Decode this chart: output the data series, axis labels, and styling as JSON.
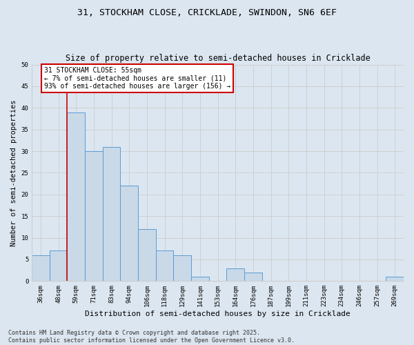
{
  "title": "31, STOCKHAM CLOSE, CRICKLADE, SWINDON, SN6 6EF",
  "subtitle": "Size of property relative to semi-detached houses in Cricklade",
  "xlabel": "Distribution of semi-detached houses by size in Cricklade",
  "ylabel": "Number of semi-detached properties",
  "bin_labels": [
    "36sqm",
    "48sqm",
    "59sqm",
    "71sqm",
    "83sqm",
    "94sqm",
    "106sqm",
    "118sqm",
    "129sqm",
    "141sqm",
    "153sqm",
    "164sqm",
    "176sqm",
    "187sqm",
    "199sqm",
    "211sqm",
    "223sqm",
    "234sqm",
    "246sqm",
    "257sqm",
    "269sqm"
  ],
  "values": [
    6,
    7,
    39,
    30,
    31,
    22,
    12,
    7,
    6,
    1,
    0,
    3,
    2,
    0,
    0,
    0,
    0,
    0,
    0,
    0,
    1
  ],
  "bar_color": "#c9d9e8",
  "bar_edge_color": "#5b9bd5",
  "vline_pos": 1.5,
  "vline_color": "#cc0000",
  "annotation_text": "31 STOCKHAM CLOSE: 55sqm\n← 7% of semi-detached houses are smaller (11)\n93% of semi-detached houses are larger (156) →",
  "annotation_box_color": "#ffffff",
  "annotation_box_edge": "#cc0000",
  "ylim": [
    0,
    50
  ],
  "yticks": [
    0,
    5,
    10,
    15,
    20,
    25,
    30,
    35,
    40,
    45,
    50
  ],
  "grid_color": "#cccccc",
  "bg_color": "#dce6f0",
  "footer_text": "Contains HM Land Registry data © Crown copyright and database right 2025.\nContains public sector information licensed under the Open Government Licence v3.0.",
  "title_fontsize": 9.5,
  "subtitle_fontsize": 8.5,
  "xlabel_fontsize": 8,
  "ylabel_fontsize": 7.5,
  "tick_fontsize": 6.5,
  "annotation_fontsize": 7,
  "footer_fontsize": 6
}
